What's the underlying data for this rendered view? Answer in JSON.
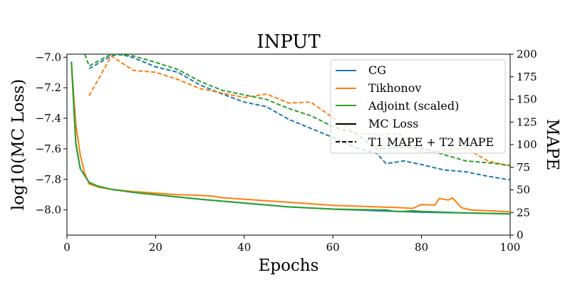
{
  "chart_data": {
    "type": "line",
    "title": "INPUT",
    "xlabel": "Epochs",
    "ylabel": "log10(MC Loss)",
    "ylabel_right": "MAPE",
    "xlim": [
      0,
      100
    ],
    "ylim": [
      -8.165,
      -6.98
    ],
    "ylim_right": [
      0,
      200
    ],
    "xticks": [
      0,
      20,
      40,
      60,
      80,
      100
    ],
    "yticks": [
      -7.0,
      -7.2,
      -7.4,
      -7.6,
      -7.8,
      -8.0
    ],
    "yticks_right": [
      0,
      25,
      50,
      75,
      100,
      125,
      150,
      175,
      200
    ],
    "xtick_labels": [
      "0",
      "20",
      "40",
      "60",
      "80",
      "100"
    ],
    "ytick_labels": [
      "−7.0",
      "−7.2",
      "−7.4",
      "−7.6",
      "−7.8",
      "−8.0"
    ],
    "ytick_labels_right": [
      "0",
      "25",
      "50",
      "75",
      "100",
      "125",
      "150",
      "175",
      "200"
    ],
    "grid": false,
    "legend_position": "top-right",
    "legend": [
      {
        "label": "CG",
        "color": "#1f77b4",
        "style": "solid"
      },
      {
        "label": "Tikhonov",
        "color": "#ff7f0e",
        "style": "solid"
      },
      {
        "label": "Adjoint (scaled)",
        "color": "#2ca02c",
        "style": "solid"
      },
      {
        "label": "MC Loss",
        "color": "#000000",
        "style": "solid"
      },
      {
        "label": "T1 MAPE + T2 MAPE",
        "color": "#000000",
        "style": "dashed"
      }
    ],
    "series": [
      {
        "name": "CG MC Loss",
        "axis": "left",
        "color": "#1f77b4",
        "style": "solid",
        "points": [
          [
            1,
            -7.03
          ],
          [
            2,
            -7.57
          ],
          [
            3,
            -7.73
          ],
          [
            5,
            -7.82
          ],
          [
            7,
            -7.845
          ],
          [
            10,
            -7.865
          ],
          [
            15,
            -7.885
          ],
          [
            20,
            -7.9
          ],
          [
            30,
            -7.93
          ],
          [
            40,
            -7.955
          ],
          [
            50,
            -7.98
          ],
          [
            60,
            -7.995
          ],
          [
            70,
            -8.005
          ],
          [
            80,
            -8.015
          ],
          [
            90,
            -8.02
          ],
          [
            100,
            -8.025
          ]
        ]
      },
      {
        "name": "Tikhonov MC Loss",
        "axis": "left",
        "color": "#ff7f0e",
        "style": "solid",
        "points": [
          [
            1,
            -7.04
          ],
          [
            2,
            -7.44
          ],
          [
            3,
            -7.64
          ],
          [
            4,
            -7.76
          ],
          [
            5,
            -7.83
          ],
          [
            7,
            -7.85
          ],
          [
            10,
            -7.865
          ],
          [
            15,
            -7.88
          ],
          [
            20,
            -7.89
          ],
          [
            25,
            -7.9
          ],
          [
            30,
            -7.905
          ],
          [
            33,
            -7.91
          ],
          [
            35,
            -7.92
          ],
          [
            40,
            -7.93
          ],
          [
            45,
            -7.94
          ],
          [
            50,
            -7.95
          ],
          [
            55,
            -7.96
          ],
          [
            60,
            -7.97
          ],
          [
            65,
            -7.975
          ],
          [
            70,
            -7.98
          ],
          [
            75,
            -7.985
          ],
          [
            78,
            -7.99
          ],
          [
            80,
            -7.965
          ],
          [
            83,
            -7.968
          ],
          [
            84,
            -7.925
          ],
          [
            86,
            -7.935
          ],
          [
            87,
            -7.922
          ],
          [
            89,
            -7.985
          ],
          [
            91,
            -8.0
          ],
          [
            95,
            -8.005
          ],
          [
            100,
            -8.012
          ]
        ]
      },
      {
        "name": "Adjoint MC Loss",
        "axis": "left",
        "color": "#2ca02c",
        "style": "solid",
        "points": [
          [
            1,
            -7.03
          ],
          [
            2,
            -7.56
          ],
          [
            3,
            -7.73
          ],
          [
            5,
            -7.82
          ],
          [
            7,
            -7.845
          ],
          [
            10,
            -7.865
          ],
          [
            15,
            -7.885
          ],
          [
            20,
            -7.9
          ],
          [
            30,
            -7.93
          ],
          [
            40,
            -7.955
          ],
          [
            50,
            -7.98
          ],
          [
            60,
            -7.995
          ],
          [
            70,
            -8.0
          ],
          [
            72,
            -8.0
          ],
          [
            74,
            -8.01
          ],
          [
            76,
            -8.01
          ],
          [
            78,
            -8.005
          ],
          [
            80,
            -8.01
          ],
          [
            90,
            -8.02
          ],
          [
            100,
            -8.027
          ]
        ]
      },
      {
        "name": "CG MAPE",
        "axis": "right",
        "color": "#1f77b4",
        "style": "dashed",
        "points": [
          [
            5,
            184
          ],
          [
            10,
            198
          ],
          [
            12,
            200
          ],
          [
            15,
            196
          ],
          [
            20,
            186
          ],
          [
            25,
            180
          ],
          [
            30,
            166
          ],
          [
            35,
            156
          ],
          [
            40,
            147
          ],
          [
            45,
            142
          ],
          [
            50,
            128
          ],
          [
            55,
            118
          ],
          [
            60,
            108
          ],
          [
            65,
            97
          ],
          [
            70,
            90
          ],
          [
            72,
            79
          ],
          [
            76,
            82
          ],
          [
            80,
            78
          ],
          [
            85,
            72
          ],
          [
            90,
            70
          ],
          [
            95,
            65
          ],
          [
            100,
            61
          ]
        ]
      },
      {
        "name": "Tikhonov MAPE",
        "axis": "right",
        "color": "#ff7f0e",
        "style": "dashed",
        "points": [
          [
            5,
            154
          ],
          [
            10,
            198
          ],
          [
            15,
            182
          ],
          [
            20,
            180
          ],
          [
            25,
            172
          ],
          [
            30,
            162
          ],
          [
            35,
            157
          ],
          [
            40,
            152
          ],
          [
            45,
            156
          ],
          [
            50,
            146
          ],
          [
            55,
            147
          ],
          [
            60,
            130
          ],
          [
            65,
            113
          ],
          [
            70,
            111
          ],
          [
            75,
            112
          ],
          [
            80,
            91
          ],
          [
            85,
            93
          ],
          [
            90,
            96
          ],
          [
            95,
            82
          ],
          [
            100,
            76
          ]
        ]
      },
      {
        "name": "Adjoint MAPE",
        "axis": "right",
        "color": "#2ca02c",
        "style": "dashed",
        "points": [
          [
            4,
            200
          ],
          [
            5,
            187
          ],
          [
            10,
            200
          ],
          [
            15,
            198
          ],
          [
            20,
            191
          ],
          [
            25,
            183
          ],
          [
            30,
            170
          ],
          [
            35,
            160
          ],
          [
            40,
            155
          ],
          [
            45,
            150
          ],
          [
            50,
            140
          ],
          [
            55,
            132
          ],
          [
            60,
            120
          ],
          [
            65,
            113
          ],
          [
            70,
            95
          ],
          [
            75,
            97
          ],
          [
            80,
            96
          ],
          [
            85,
            89
          ],
          [
            90,
            82
          ],
          [
            95,
            80
          ],
          [
            100,
            77
          ]
        ]
      }
    ]
  }
}
